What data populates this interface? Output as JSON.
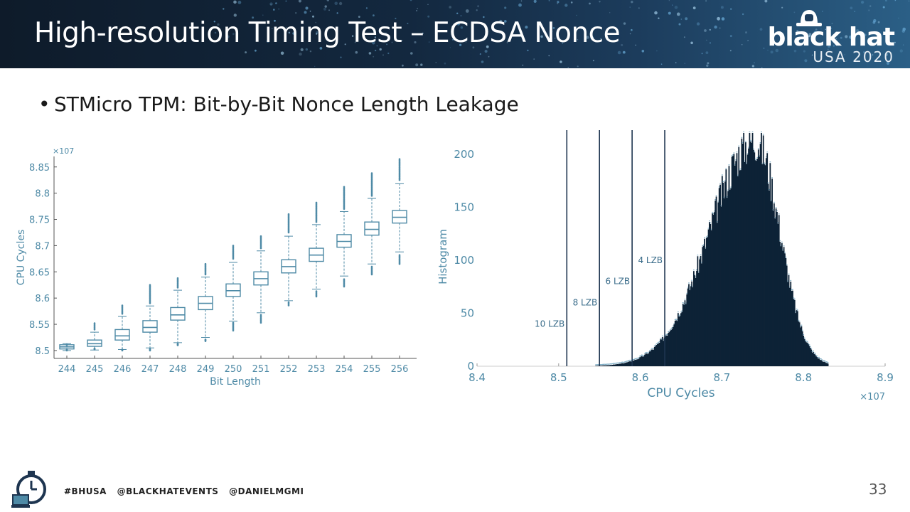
{
  "header": {
    "title": "High-resolution Timing Test – ECDSA Nonce",
    "brand_name": "black hat",
    "brand_event": "USA 2020",
    "logo_icon": "black-hat-logo-icon"
  },
  "bullet": {
    "text": "STMicro TPM: Bit-by-Bit  Nonce Length Leakage"
  },
  "footer": {
    "tags": [
      "#BHUSA",
      "@BLACKHATEVENTS",
      "@DANIELMGMI"
    ],
    "page_number": "33",
    "icon": "stopwatch-laptop-icon"
  },
  "colors": {
    "accent": "#4e8aa6",
    "hist_fill": "#0d2236",
    "hist_edge": "#5f9ab8"
  },
  "chart_data": [
    {
      "type": "box",
      "xlabel": "Bit Length",
      "ylabel": "CPU Cycles",
      "yexponent": "×10^7",
      "ylim": [
        8.485,
        8.87
      ],
      "yticks": [
        8.5,
        8.55,
        8.6,
        8.65,
        8.7,
        8.75,
        8.8,
        8.85
      ],
      "categories": [
        "244",
        "245",
        "246",
        "247",
        "248",
        "249",
        "250",
        "251",
        "252",
        "253",
        "254",
        "255",
        "256"
      ],
      "boxes": [
        {
          "q1": 8.503,
          "median": 8.507,
          "q3": 8.511,
          "whisker_low": 8.5,
          "whisker_high": 8.513
        },
        {
          "q1": 8.508,
          "median": 8.513,
          "q3": 8.52,
          "whisker_low": 8.501,
          "whisker_high": 8.535
        },
        {
          "q1": 8.52,
          "median": 8.528,
          "q3": 8.54,
          "whisker_low": 8.502,
          "whisker_high": 8.565
        },
        {
          "q1": 8.535,
          "median": 8.544,
          "q3": 8.557,
          "whisker_low": 8.505,
          "whisker_high": 8.585
        },
        {
          "q1": 8.558,
          "median": 8.568,
          "q3": 8.582,
          "whisker_low": 8.515,
          "whisker_high": 8.615
        },
        {
          "q1": 8.578,
          "median": 8.59,
          "q3": 8.603,
          "whisker_low": 8.525,
          "whisker_high": 8.64
        },
        {
          "q1": 8.603,
          "median": 8.614,
          "q3": 8.627,
          "whisker_low": 8.556,
          "whisker_high": 8.668
        },
        {
          "q1": 8.625,
          "median": 8.637,
          "q3": 8.65,
          "whisker_low": 8.572,
          "whisker_high": 8.69
        },
        {
          "q1": 8.648,
          "median": 8.66,
          "q3": 8.673,
          "whisker_low": 8.595,
          "whisker_high": 8.718
        },
        {
          "q1": 8.67,
          "median": 8.682,
          "q3": 8.695,
          "whisker_low": 8.617,
          "whisker_high": 8.74
        },
        {
          "q1": 8.697,
          "median": 8.708,
          "q3": 8.721,
          "whisker_low": 8.642,
          "whisker_high": 8.765
        },
        {
          "q1": 8.72,
          "median": 8.731,
          "q3": 8.745,
          "whisker_low": 8.665,
          "whisker_high": 8.79
        },
        {
          "q1": 8.743,
          "median": 8.754,
          "q3": 8.767,
          "whisker_low": 8.688,
          "whisker_high": 8.818
        }
      ],
      "outlier_ranges": [
        {
          "low": [
            8.5,
            8.503
          ],
          "high": [
            8.51,
            8.512
          ]
        },
        {
          "low": [
            8.502,
            8.504
          ],
          "high": [
            8.54,
            8.552
          ]
        },
        {
          "low": [
            8.5,
            8.502
          ],
          "high": [
            8.57,
            8.586
          ]
        },
        {
          "low": [
            8.5,
            8.503
          ],
          "high": [
            8.59,
            8.625
          ]
        },
        {
          "low": [
            8.51,
            8.513
          ],
          "high": [
            8.62,
            8.638
          ]
        },
        {
          "low": [
            8.518,
            8.521
          ],
          "high": [
            8.645,
            8.665
          ]
        },
        {
          "low": [
            8.538,
            8.553
          ],
          "high": [
            8.675,
            8.7
          ]
        },
        {
          "low": [
            8.553,
            8.568
          ],
          "high": [
            8.695,
            8.718
          ]
        },
        {
          "low": [
            8.586,
            8.592
          ],
          "high": [
            8.725,
            8.76
          ]
        },
        {
          "low": [
            8.603,
            8.613
          ],
          "high": [
            8.745,
            8.782
          ]
        },
        {
          "low": [
            8.622,
            8.636
          ],
          "high": [
            8.77,
            8.812
          ]
        },
        {
          "low": [
            8.645,
            8.66
          ],
          "high": [
            8.795,
            8.838
          ]
        },
        {
          "low": [
            8.665,
            8.682
          ],
          "high": [
            8.825,
            8.865
          ]
        }
      ]
    },
    {
      "type": "histogram",
      "xlabel": "CPU Cycles",
      "ylabel": "Histogram",
      "xexponent": "×10^7",
      "xlim": [
        8.4,
        8.9
      ],
      "ylim": [
        0,
        220
      ],
      "xticks": [
        8.4,
        8.5,
        8.6,
        8.7,
        8.8,
        8.9
      ],
      "yticks": [
        0,
        50,
        100,
        150,
        200
      ],
      "distribution": {
        "mode": 8.74,
        "peak_count": 218,
        "left_spread": 0.055,
        "right_spread": 0.03,
        "start": 8.48,
        "end": 8.83
      },
      "markers": [
        {
          "x": 8.51,
          "label": "10 LZB",
          "label_y": 40
        },
        {
          "x": 8.55,
          "label": "8 LZB",
          "label_y": 60
        },
        {
          "x": 8.59,
          "label": "6 LZB",
          "label_y": 80
        },
        {
          "x": 8.63,
          "label": "4 LZB",
          "label_y": 100
        }
      ]
    }
  ]
}
